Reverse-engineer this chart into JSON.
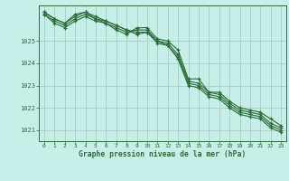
{
  "title": "Graphe pression niveau de la mer (hPa)",
  "background_color": "#c8eee8",
  "grid_color": "#a8cec8",
  "line_color": "#2d6b3c",
  "xlim": [
    -0.5,
    23.5
  ],
  "ylim": [
    1020.5,
    1026.6
  ],
  "yticks": [
    1021,
    1022,
    1023,
    1024,
    1025
  ],
  "yticklabels": [
    "1021",
    "1022",
    "1023",
    "1024",
    "1025"
  ],
  "xticks": [
    0,
    1,
    2,
    3,
    4,
    5,
    6,
    7,
    8,
    9,
    10,
    11,
    12,
    13,
    14,
    15,
    16,
    17,
    18,
    19,
    20,
    21,
    22,
    23
  ],
  "series": [
    [
      1026.2,
      1025.8,
      1025.6,
      1025.9,
      1026.1,
      1025.9,
      1025.8,
      1025.5,
      1025.3,
      1025.6,
      1025.6,
      1025.1,
      1025.0,
      1024.6,
      1023.3,
      1023.3,
      1022.7,
      1022.7,
      1022.3,
      1022.0,
      1021.9,
      1021.8,
      1021.5,
      1021.2
    ],
    [
      1026.2,
      1025.9,
      1025.7,
      1026.0,
      1026.2,
      1026.0,
      1025.8,
      1025.6,
      1025.4,
      1025.5,
      1025.5,
      1025.0,
      1024.9,
      1024.4,
      1023.2,
      1023.1,
      1022.7,
      1022.6,
      1022.2,
      1021.9,
      1021.8,
      1021.7,
      1021.3,
      1021.1
    ],
    [
      1026.3,
      1026.0,
      1025.8,
      1026.1,
      1026.3,
      1026.0,
      1025.9,
      1025.7,
      1025.5,
      1025.4,
      1025.4,
      1025.0,
      1024.8,
      1024.3,
      1023.1,
      1023.0,
      1022.6,
      1022.5,
      1022.1,
      1021.8,
      1021.7,
      1021.6,
      1021.2,
      1021.0
    ],
    [
      1026.3,
      1026.0,
      1025.8,
      1026.2,
      1026.3,
      1026.1,
      1025.9,
      1025.7,
      1025.5,
      1025.3,
      1025.4,
      1024.9,
      1024.8,
      1024.2,
      1023.0,
      1022.9,
      1022.5,
      1022.4,
      1022.0,
      1021.7,
      1021.6,
      1021.5,
      1021.1,
      1020.9
    ]
  ]
}
